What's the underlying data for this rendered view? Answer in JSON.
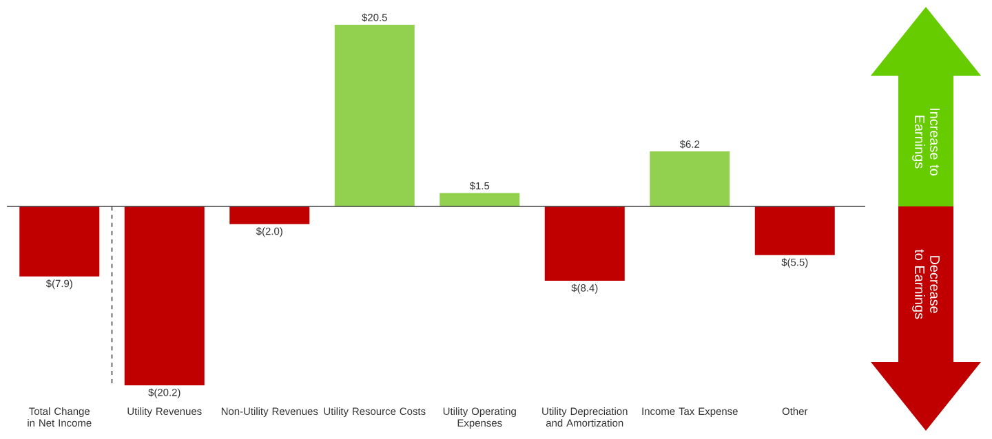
{
  "chart_data": {
    "type": "bar",
    "categories": [
      "Total Change in Net Income",
      "Utility Revenues",
      "Non-Utility Revenues",
      "Utility Resource Costs",
      "Utility Operating Expenses",
      "Utility Depreciation and Amortization",
      "Income Tax Expense",
      "Other"
    ],
    "values": [
      -7.9,
      -20.2,
      -2.0,
      20.5,
      1.5,
      -8.4,
      6.2,
      -5.5
    ],
    "colors": [
      "#c00000",
      "#c00000",
      "#c00000",
      "#92d050",
      "#92d050",
      "#c00000",
      "#92d050",
      "#c00000"
    ],
    "value_labels": [
      "$(7.9)",
      "$(20.2)",
      "$(2.0)",
      "$20.5",
      "$1.5",
      "$(8.4)",
      "$6.2",
      "$(5.5)"
    ],
    "annotations": [
      "Increase to Earnings",
      "Decrease to Earnings"
    ],
    "legend": false
  }
}
